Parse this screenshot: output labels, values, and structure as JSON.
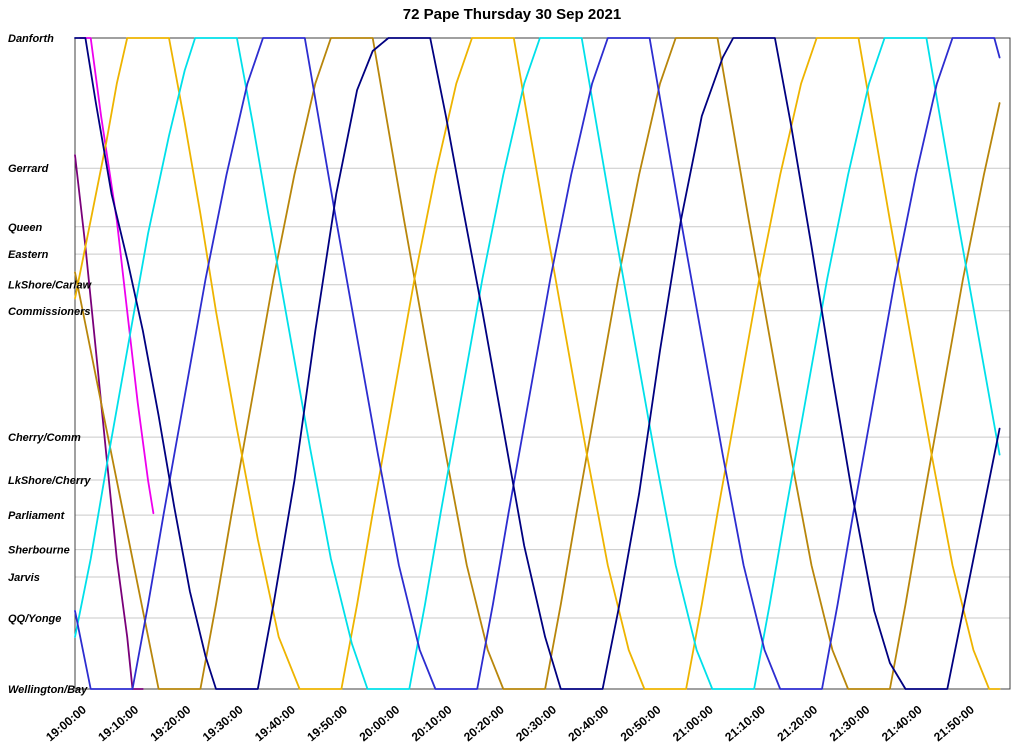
{
  "title": "72 Pape Thursday 30 Sep 2021",
  "chart_data": {
    "type": "line",
    "subtype": "transit-stringline",
    "title": "72 Pape Thursday 30 Sep 2021",
    "xlabel": "",
    "ylabel": "",
    "grid": "horizontal",
    "legend": "none",
    "x_axis": {
      "unit": "minutes-after-19:00",
      "range": [
        0,
        179
      ],
      "tick_interval_min": 10,
      "tick_times_min": [
        0,
        10,
        20,
        30,
        40,
        50,
        60,
        70,
        80,
        90,
        100,
        110,
        120,
        130,
        140,
        150,
        160,
        170
      ],
      "tick_labels": [
        "19:00:00",
        "19:10:00",
        "19:20:00",
        "19:30:00",
        "19:40:00",
        "19:50:00",
        "20:00:00",
        "20:10:00",
        "20:20:00",
        "20:30:00",
        "20:40:00",
        "20:50:00",
        "21:00:00",
        "21:10:00",
        "21:20:00",
        "21:30:00",
        "21:40:00",
        "21:50:00"
      ]
    },
    "y_axis": {
      "unit": "route-position (0 = Wellington/Bay, 100 = Danforth)",
      "range": [
        0,
        100
      ],
      "stops": [
        {
          "name": "Danforth",
          "pos": 100
        },
        {
          "name": "Gerrard",
          "pos": 80.0
        },
        {
          "name": "Queen",
          "pos": 71.0
        },
        {
          "name": "Eastern",
          "pos": 66.8
        },
        {
          "name": "LkShore/Carlaw",
          "pos": 62.1
        },
        {
          "name": "Commissioners",
          "pos": 58.1
        },
        {
          "name": "Cherry/Comm",
          "pos": 38.7
        },
        {
          "name": "LkShore/Cherry",
          "pos": 32.1
        },
        {
          "name": "Parliament",
          "pos": 26.7
        },
        {
          "name": "Sherbourne",
          "pos": 21.4
        },
        {
          "name": "Jarvis",
          "pos": 17.2
        },
        {
          "name": "QQ/Yonge",
          "pos": 10.9
        },
        {
          "name": "Wellington/Bay",
          "pos": 0
        }
      ]
    },
    "colors": {
      "navy": "#000080",
      "blue": "#2d2dd0",
      "cyan": "#00e0ea",
      "gold": "#eeb400",
      "darkgold": "#b8860b",
      "magenta": "#ee00ee",
      "purple": "#7a007a"
    },
    "series": [
      {
        "name": "run-magenta",
        "color": "#ee00ee",
        "points": [
          [
            1,
            100
          ],
          [
            3,
            100
          ],
          [
            5,
            88
          ],
          [
            8,
            72
          ],
          [
            10,
            58
          ],
          [
            12,
            44
          ],
          [
            14,
            32
          ],
          [
            15,
            27
          ]
        ]
      },
      {
        "name": "run-purple",
        "color": "#7a007a",
        "points": [
          [
            0,
            82
          ],
          [
            2,
            68
          ],
          [
            4,
            52
          ],
          [
            6,
            36
          ],
          [
            8,
            20
          ],
          [
            10,
            8
          ],
          [
            11,
            0
          ],
          [
            13,
            0
          ]
        ]
      },
      {
        "name": "run-darkgold",
        "color": "#b8860b",
        "points": [
          [
            0,
            64
          ],
          [
            3,
            52
          ],
          [
            6,
            40
          ],
          [
            9,
            28
          ],
          [
            12,
            16
          ],
          [
            15,
            4
          ],
          [
            16,
            0
          ],
          [
            24,
            0
          ],
          [
            27,
            13
          ],
          [
            30,
            27
          ],
          [
            34,
            45
          ],
          [
            38,
            63
          ],
          [
            42,
            79
          ],
          [
            46,
            93
          ],
          [
            49,
            100
          ],
          [
            57,
            100
          ],
          [
            60,
            86
          ],
          [
            63,
            72
          ],
          [
            67,
            54
          ],
          [
            71,
            36
          ],
          [
            75,
            19
          ],
          [
            79,
            6
          ],
          [
            82,
            0
          ],
          [
            90,
            0
          ],
          [
            93,
            13
          ],
          [
            96,
            27
          ],
          [
            100,
            45
          ],
          [
            104,
            63
          ],
          [
            108,
            79
          ],
          [
            112,
            93
          ],
          [
            115,
            100
          ],
          [
            123,
            100
          ],
          [
            126,
            86
          ],
          [
            129,
            72
          ],
          [
            133,
            54
          ],
          [
            137,
            36
          ],
          [
            141,
            19
          ],
          [
            145,
            6
          ],
          [
            148,
            0
          ],
          [
            156,
            0
          ],
          [
            159,
            13
          ],
          [
            162,
            27
          ],
          [
            166,
            45
          ],
          [
            170,
            63
          ],
          [
            174,
            79
          ],
          [
            177,
            90
          ]
        ]
      },
      {
        "name": "run-gold",
        "color": "#eeb400",
        "points": [
          [
            0,
            60
          ],
          [
            3,
            72
          ],
          [
            6,
            84
          ],
          [
            8,
            93
          ],
          [
            10,
            100
          ],
          [
            18,
            100
          ],
          [
            21,
            87
          ],
          [
            24,
            73
          ],
          [
            27,
            58
          ],
          [
            31,
            40
          ],
          [
            35,
            23
          ],
          [
            39,
            8
          ],
          [
            43,
            0
          ],
          [
            51,
            0
          ],
          [
            54,
            13
          ],
          [
            57,
            27
          ],
          [
            61,
            45
          ],
          [
            65,
            63
          ],
          [
            69,
            79
          ],
          [
            73,
            93
          ],
          [
            76,
            100
          ],
          [
            84,
            100
          ],
          [
            87,
            86
          ],
          [
            90,
            72
          ],
          [
            94,
            54
          ],
          [
            98,
            36
          ],
          [
            102,
            19
          ],
          [
            106,
            6
          ],
          [
            109,
            0
          ],
          [
            117,
            0
          ],
          [
            120,
            13
          ],
          [
            123,
            27
          ],
          [
            127,
            45
          ],
          [
            131,
            63
          ],
          [
            135,
            79
          ],
          [
            139,
            93
          ],
          [
            142,
            100
          ],
          [
            150,
            100
          ],
          [
            153,
            86
          ],
          [
            156,
            72
          ],
          [
            160,
            54
          ],
          [
            164,
            36
          ],
          [
            168,
            19
          ],
          [
            172,
            6
          ],
          [
            175,
            0
          ],
          [
            177,
            0
          ]
        ]
      },
      {
        "name": "run-cyan",
        "color": "#00e0ea",
        "points": [
          [
            0,
            8
          ],
          [
            3,
            20
          ],
          [
            6,
            34
          ],
          [
            10,
            52
          ],
          [
            14,
            70
          ],
          [
            18,
            85
          ],
          [
            21,
            95
          ],
          [
            23,
            100
          ],
          [
            31,
            100
          ],
          [
            34,
            87
          ],
          [
            37,
            73
          ],
          [
            41,
            55
          ],
          [
            45,
            37
          ],
          [
            49,
            20
          ],
          [
            53,
            7
          ],
          [
            56,
            0
          ],
          [
            64,
            0
          ],
          [
            67,
            13
          ],
          [
            70,
            27
          ],
          [
            74,
            45
          ],
          [
            78,
            63
          ],
          [
            82,
            79
          ],
          [
            86,
            93
          ],
          [
            89,
            100
          ],
          [
            97,
            100
          ],
          [
            100,
            86
          ],
          [
            103,
            72
          ],
          [
            107,
            54
          ],
          [
            111,
            36
          ],
          [
            115,
            19
          ],
          [
            119,
            6
          ],
          [
            122,
            0
          ],
          [
            130,
            0
          ],
          [
            133,
            13
          ],
          [
            136,
            27
          ],
          [
            140,
            45
          ],
          [
            144,
            63
          ],
          [
            148,
            79
          ],
          [
            152,
            93
          ],
          [
            155,
            100
          ],
          [
            163,
            100
          ],
          [
            166,
            86
          ],
          [
            169,
            72
          ],
          [
            173,
            54
          ],
          [
            177,
            36
          ]
        ]
      },
      {
        "name": "run-blue",
        "color": "#2d2dd0",
        "points": [
          [
            0,
            12
          ],
          [
            3,
            0
          ],
          [
            11,
            0
          ],
          [
            14,
            13
          ],
          [
            17,
            27
          ],
          [
            21,
            45
          ],
          [
            25,
            63
          ],
          [
            29,
            79
          ],
          [
            33,
            93
          ],
          [
            36,
            100
          ],
          [
            44,
            100
          ],
          [
            47,
            86
          ],
          [
            50,
            72
          ],
          [
            54,
            54
          ],
          [
            58,
            36
          ],
          [
            62,
            19
          ],
          [
            66,
            6
          ],
          [
            69,
            0
          ],
          [
            77,
            0
          ],
          [
            80,
            13
          ],
          [
            83,
            27
          ],
          [
            87,
            45
          ],
          [
            91,
            63
          ],
          [
            95,
            79
          ],
          [
            99,
            93
          ],
          [
            102,
            100
          ],
          [
            110,
            100
          ],
          [
            113,
            86
          ],
          [
            116,
            72
          ],
          [
            120,
            54
          ],
          [
            124,
            36
          ],
          [
            128,
            19
          ],
          [
            132,
            6
          ],
          [
            135,
            0
          ],
          [
            143,
            0
          ],
          [
            146,
            13
          ],
          [
            149,
            27
          ],
          [
            153,
            45
          ],
          [
            157,
            63
          ],
          [
            161,
            79
          ],
          [
            165,
            93
          ],
          [
            168,
            100
          ],
          [
            176,
            100
          ],
          [
            177,
            97
          ]
        ]
      },
      {
        "name": "run-navy",
        "color": "#000080",
        "points": [
          [
            0,
            100
          ],
          [
            2,
            100
          ],
          [
            4,
            90
          ],
          [
            7,
            76
          ],
          [
            10,
            66
          ],
          [
            13,
            55
          ],
          [
            16,
            42
          ],
          [
            19,
            28
          ],
          [
            22,
            15
          ],
          [
            25,
            5
          ],
          [
            27,
            0
          ],
          [
            35,
            0
          ],
          [
            38,
            13
          ],
          [
            42,
            32
          ],
          [
            46,
            55
          ],
          [
            50,
            76
          ],
          [
            54,
            92
          ],
          [
            57,
            98
          ],
          [
            60,
            100
          ],
          [
            68,
            100
          ],
          [
            71,
            88
          ],
          [
            74,
            75
          ],
          [
            78,
            58
          ],
          [
            82,
            40
          ],
          [
            86,
            22
          ],
          [
            90,
            8
          ],
          [
            93,
            0
          ],
          [
            101,
            0
          ],
          [
            104,
            12
          ],
          [
            108,
            30
          ],
          [
            112,
            52
          ],
          [
            116,
            72
          ],
          [
            120,
            88
          ],
          [
            124,
            97
          ],
          [
            126,
            100
          ],
          [
            134,
            100
          ],
          [
            137,
            87
          ],
          [
            141,
            68
          ],
          [
            145,
            48
          ],
          [
            149,
            29
          ],
          [
            153,
            12
          ],
          [
            156,
            4
          ],
          [
            159,
            0
          ],
          [
            167,
            0
          ],
          [
            170,
            12
          ],
          [
            174,
            28
          ],
          [
            177,
            40
          ]
        ]
      }
    ]
  }
}
